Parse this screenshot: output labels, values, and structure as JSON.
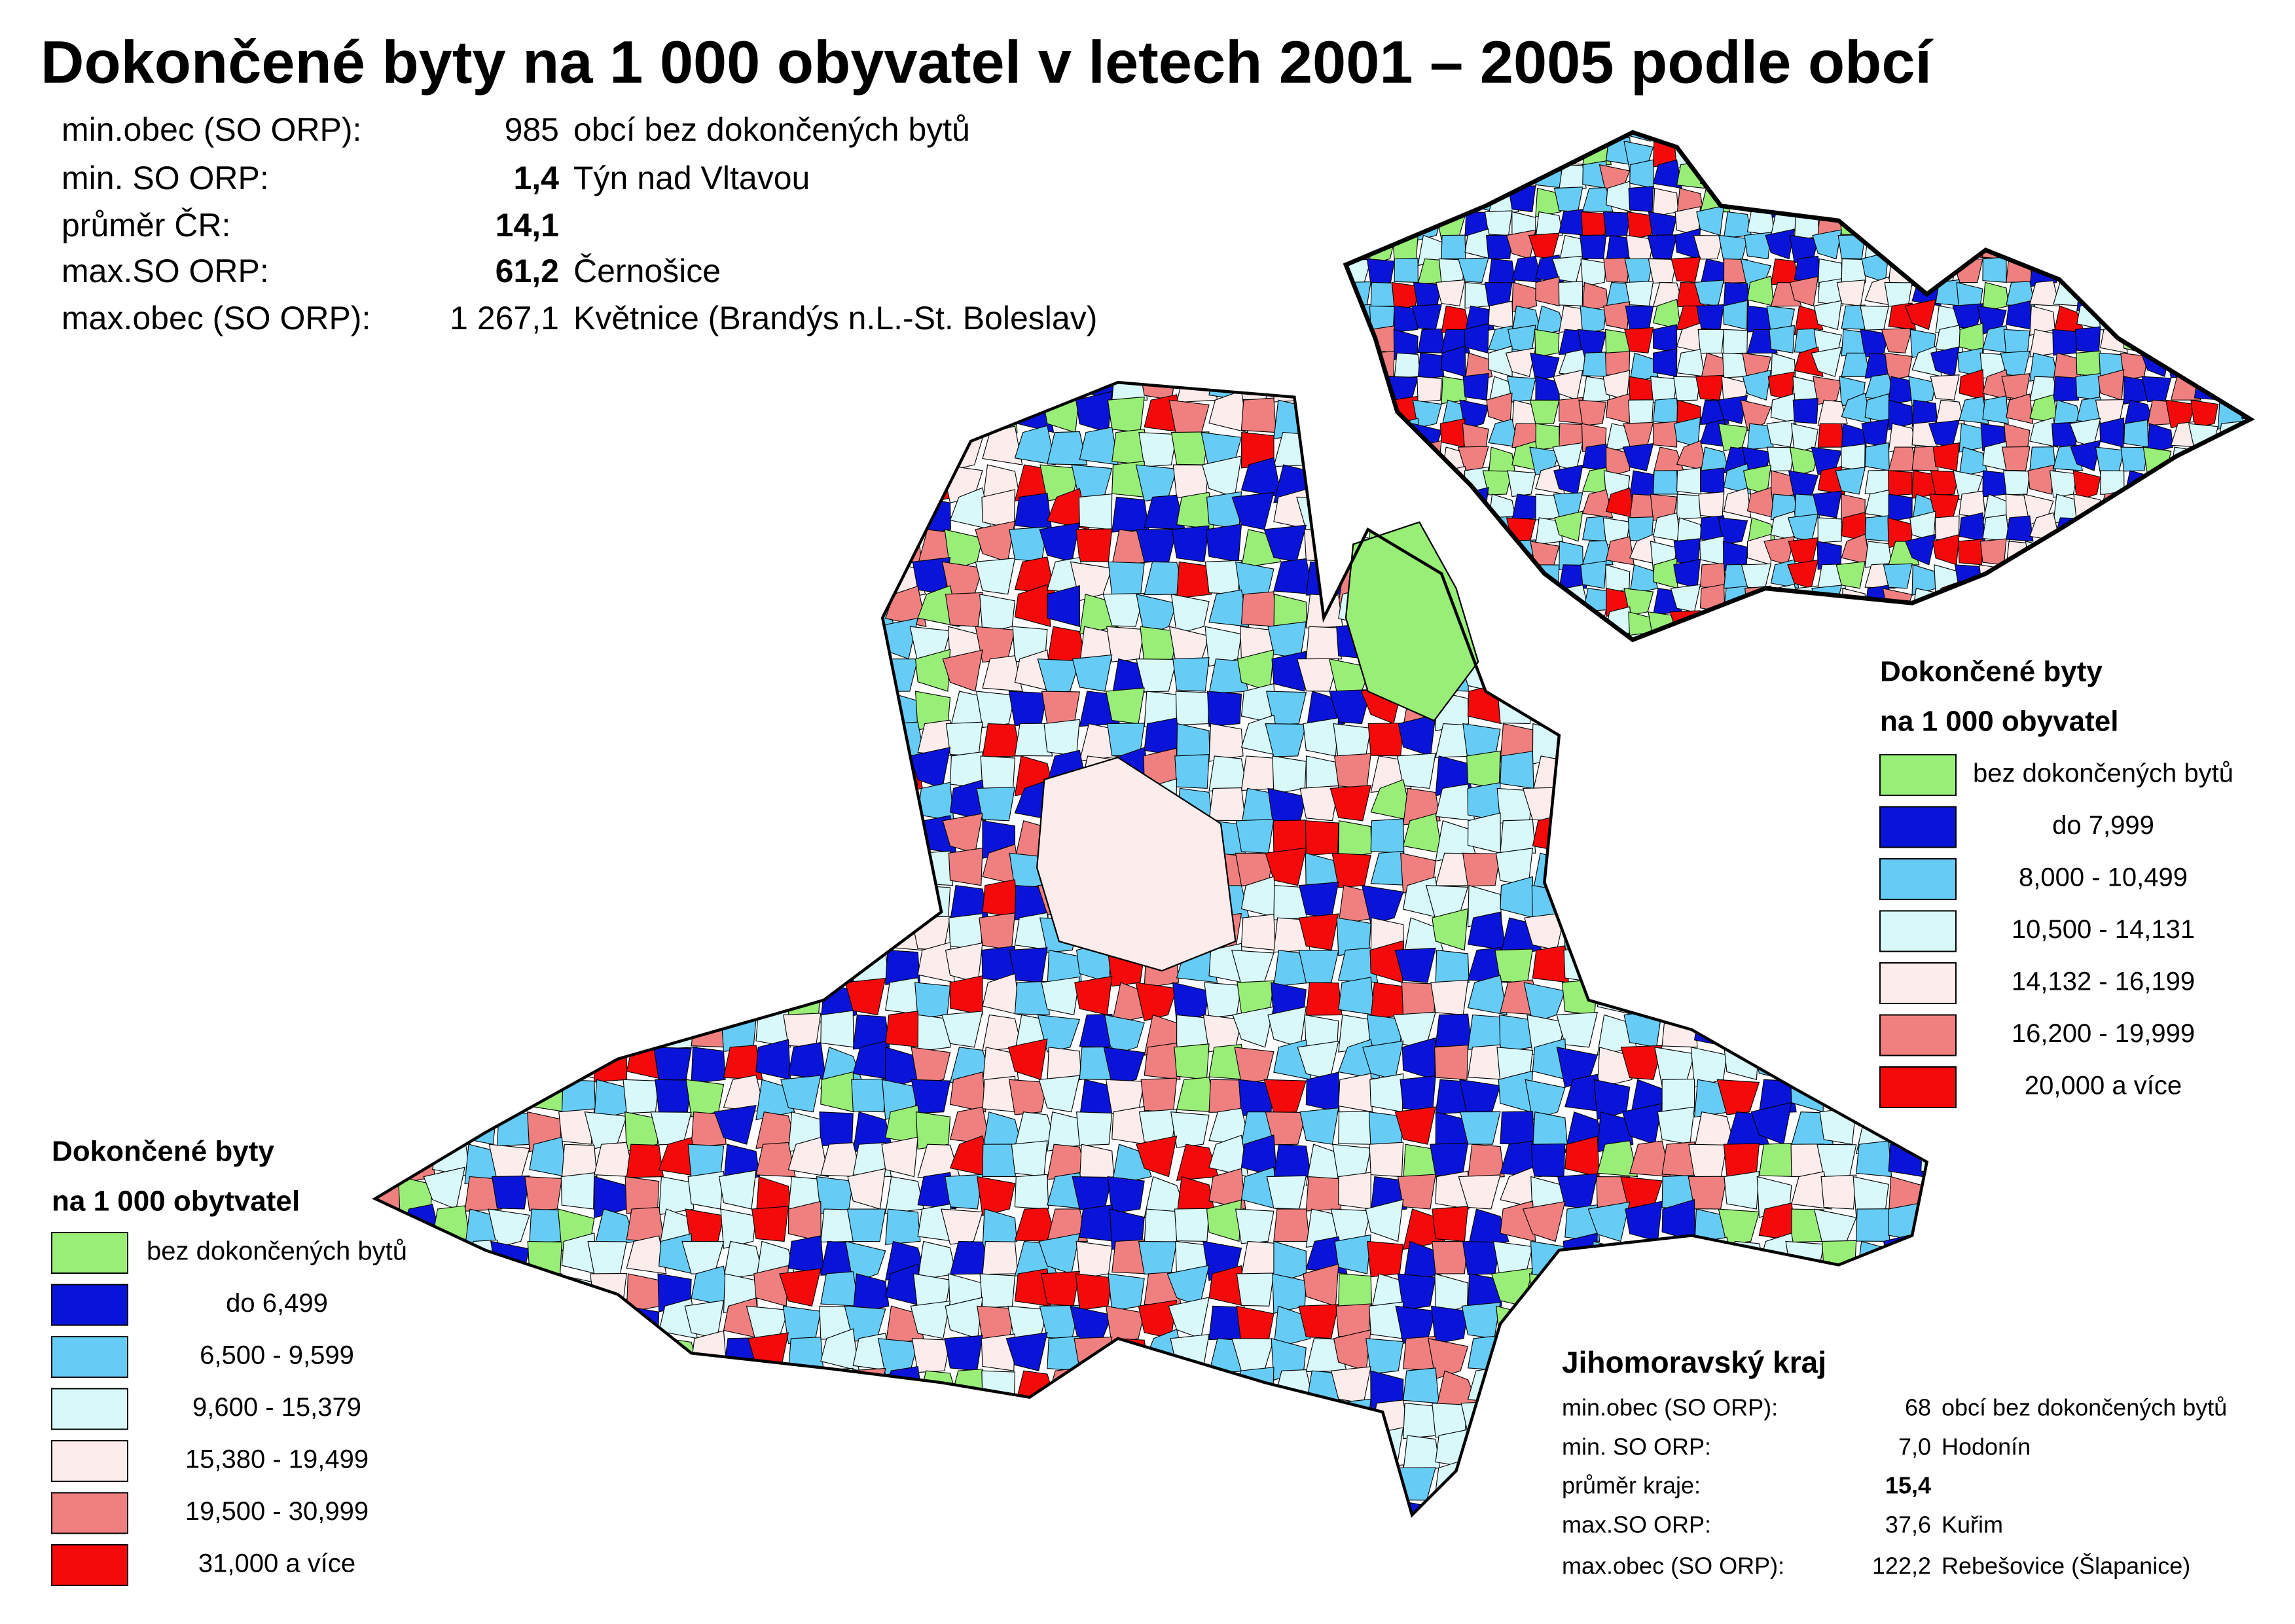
{
  "title": "Dokončené byty na 1 000 obyvatel v letech 2001 – 2005 podle obcí",
  "national_stats": {
    "rows": [
      [
        "min.obec (SO ORP):",
        "985",
        "obcí bez dokončených bytů"
      ],
      [
        "min. SO ORP:",
        "1,4",
        "Týn nad Vltavou"
      ],
      [
        "průměr ČR:",
        "14,1",
        ""
      ],
      [
        "max.SO ORP:",
        "61,2",
        "Černošice"
      ],
      [
        "max.obec (SO ORP):",
        "1 267,1",
        "Květnice (Brandýs n.L.-St. Boleslav)"
      ]
    ]
  },
  "national_legend": {
    "title_lines": [
      "Dokončené byty",
      "na 1 000 obyvatel"
    ],
    "items": [
      {
        "label": "bez dokončených bytů",
        "color": "#99ee77"
      },
      {
        "label": "do 7,999",
        "color": "#0a14d8"
      },
      {
        "label": "8,000 - 10,499",
        "color": "#66ccf5"
      },
      {
        "label": "10,500 - 14,131",
        "color": "#d8f8fa"
      },
      {
        "label": "14,132 - 16,199",
        "color": "#fdecec"
      },
      {
        "label": "16,200 - 19,999",
        "color": "#f08080"
      },
      {
        "label": "20,000 a více",
        "color": "#f40a0a"
      }
    ]
  },
  "regional_legend": {
    "title_lines": [
      "Dokončené byty",
      "na 1 000 obytvatel"
    ],
    "items": [
      {
        "label": "bez dokončených bytů",
        "color": "#99ee77"
      },
      {
        "label": "do 6,499",
        "color": "#0a14d8"
      },
      {
        "label": "6,500 -   9,599",
        "color": "#66ccf5"
      },
      {
        "label": "9,600 - 15,379",
        "color": "#d8f8fa"
      },
      {
        "label": "15,380 - 19,499",
        "color": "#fdecec"
      },
      {
        "label": "19,500 - 30,999",
        "color": "#f08080"
      },
      {
        "label": "31,000 a více",
        "color": "#f40a0a"
      }
    ]
  },
  "regional_stats": {
    "title": "Jihomoravský kraj",
    "rows": [
      [
        "min.obec (SO ORP):",
        "68",
        "obcí bez dokončených bytů"
      ],
      [
        "min. SO ORP:",
        "7,0",
        "Hodonín"
      ],
      [
        "průměr kraje:",
        "15,4",
        ""
      ],
      [
        "max.SO ORP:",
        "37,6",
        "Kuřim"
      ],
      [
        "max.obec (SO ORP):",
        "122,2",
        "Rebešovice (Šlapanice)"
      ]
    ]
  }
}
